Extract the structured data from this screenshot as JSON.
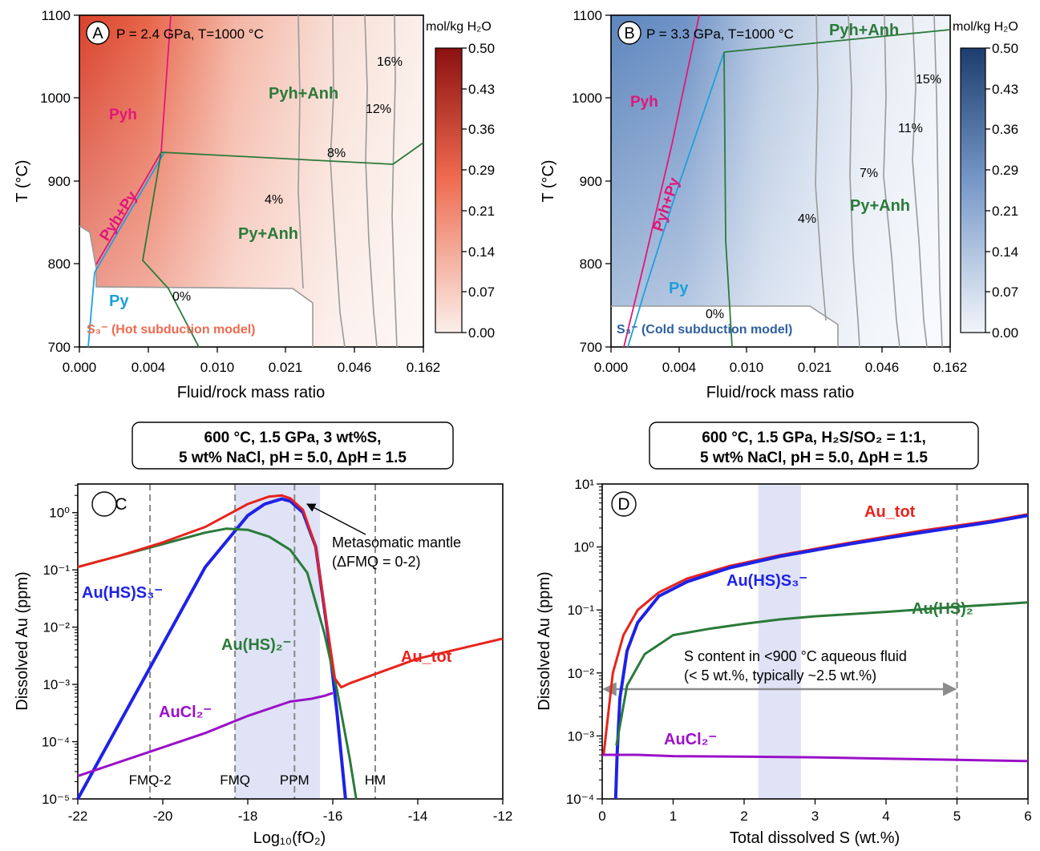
{
  "colors": {
    "red": "#e8231c",
    "blue": "#1e22e6",
    "green": "#2b7a3a",
    "purple": "#9a10c8",
    "cyan": "#1ea0dc",
    "magenta": "#e0187a",
    "gray": "#888888",
    "band": "#dfe3f5"
  },
  "chart_data": [
    {
      "panel": "A",
      "type": "heatmap",
      "conditions": "P = 2.4 GPa, T=1000 °C",
      "xlabel": "Fluid/rock mass ratio",
      "ylabel": "T (°C)",
      "xticks": [
        "0.000",
        "0.004",
        "0.010",
        "0.021",
        "0.046",
        "0.162"
      ],
      "yticks": [
        "700",
        "800",
        "900",
        "1000",
        "1100"
      ],
      "ylim": [
        700,
        1100
      ],
      "colorbar": {
        "label": "mol/kg H₂O",
        "ticks": [
          "0.00",
          "0.07",
          "0.14",
          "0.21",
          "0.29",
          "0.36",
          "0.43",
          "0.50"
        ],
        "colors": [
          "#fbefe9",
          "#e8231c",
          "#8b1010"
        ]
      },
      "isopleths": [
        "16%",
        "12%",
        "8%",
        "4%",
        "0%"
      ],
      "fields": [
        "Pyh",
        "Pyh+Py",
        "Pyh+Anh",
        "Py+Anh",
        "Py"
      ],
      "model_label": "S₃⁻ (Hot subduction model)"
    },
    {
      "panel": "B",
      "type": "heatmap",
      "conditions": "P = 3.3 GPa, T=1000 °C",
      "xlabel": "Fluid/rock mass ratio",
      "ylabel": "T (°C)",
      "xticks": [
        "0.000",
        "0.004",
        "0.010",
        "0.021",
        "0.046",
        "0.162"
      ],
      "yticks": [
        "700",
        "800",
        "900",
        "1000",
        "1100"
      ],
      "ylim": [
        700,
        1100
      ],
      "colorbar": {
        "label": "mol/kg H₂O",
        "ticks": [
          "0.00",
          "0.07",
          "0.14",
          "0.21",
          "0.29",
          "0.36",
          "0.43",
          "0.50"
        ],
        "colors": [
          "#f2f5fa",
          "#2d5fa0",
          "#1c3d6e"
        ]
      },
      "isopleths": [
        "15%",
        "11%",
        "7%",
        "4%",
        "0%"
      ],
      "fields": [
        "Pyh",
        "Pyh+Py",
        "Pyh+Anh",
        "Py+Anh",
        "Py"
      ],
      "model_label": "S₃⁻ (Cold subduction model)"
    },
    {
      "panel": "C",
      "type": "line",
      "header": [
        "600 °C, 1.5 GPa, 3 wt%S,",
        "5 wt% NaCl, pH = 5.0, ΔpH = 1.5"
      ],
      "xlabel": "Log₁₀(fO₂)",
      "ylabel": "Dissolved Au (ppm)",
      "xlim": [
        -22,
        -12
      ],
      "ylim_log": [
        -5,
        0.5
      ],
      "xticks": [
        "-22",
        "-20",
        "-18",
        "-16",
        "-14",
        "-12"
      ],
      "yticks": [
        "10⁻⁵",
        "10⁻⁴",
        "10⁻³",
        "10⁻²",
        "10⁻¹",
        "10⁰"
      ],
      "vlines": [
        {
          "x": -20.3,
          "label": "FMQ-2"
        },
        {
          "x": -18.3,
          "label": "FMQ"
        },
        {
          "x": -16.9,
          "label": "PPM"
        },
        {
          "x": -15.0,
          "label": "HM"
        }
      ],
      "band": [
        -18.3,
        -16.3
      ],
      "annotation": [
        "Metasomatic mantle",
        "(ΔFMQ = 0-2)"
      ],
      "series": [
        {
          "name": "Au(HS)S₃⁻",
          "color": "blue",
          "x": [
            -22,
            -21,
            -20,
            -19,
            -18.5,
            -18,
            -17.6,
            -17.2,
            -17,
            -16.7,
            -16.4,
            -16.1,
            -15.9,
            -15.7
          ],
          "logy": [
            -5,
            -3.65,
            -2.3,
            -0.95,
            -0.5,
            -0.05,
            0.15,
            0.24,
            0.2,
            0.0,
            -0.6,
            -2.2,
            -3.5,
            -5.0
          ]
        },
        {
          "name": "Au(HS)₂⁻",
          "color": "green",
          "x": [
            -22,
            -21,
            -20,
            -19,
            -18.5,
            -18,
            -17.5,
            -17,
            -16.6,
            -16.2,
            -15.9,
            -15.6,
            -15.45
          ],
          "logy": [
            -0.95,
            -0.75,
            -0.55,
            -0.35,
            -0.28,
            -0.3,
            -0.42,
            -0.65,
            -1.05,
            -2.1,
            -3.1,
            -4.3,
            -5.0
          ]
        },
        {
          "name": "AuCl₂⁻",
          "color": "purple",
          "x": [
            -22,
            -21,
            -20,
            -19,
            -18,
            -17,
            -16.5,
            -16.2,
            -16
          ],
          "logy": [
            -4.6,
            -4.35,
            -4.1,
            -3.85,
            -3.55,
            -3.3,
            -3.25,
            -3.2,
            -3.15
          ]
        },
        {
          "name": "Au_tot",
          "color": "red",
          "x": [
            -22,
            -21,
            -20,
            -19,
            -18.5,
            -18,
            -17.5,
            -17.2,
            -17,
            -16.7,
            -16.4,
            -16.15,
            -15.95,
            -15.8,
            -15.6,
            -14,
            -12
          ],
          "logy": [
            -0.95,
            -0.75,
            -0.52,
            -0.25,
            -0.05,
            0.15,
            0.28,
            0.3,
            0.25,
            0.05,
            -0.6,
            -1.9,
            -2.9,
            -3.05,
            -2.98,
            -2.55,
            -2.2
          ]
        }
      ]
    },
    {
      "panel": "D",
      "type": "line",
      "header": [
        "600 °C, 1.5 GPa, H₂S/SO₂ = 1:1,",
        "5 wt% NaCl, pH = 5.0, ΔpH = 1.5"
      ],
      "xlabel": "Total dissolved S (wt.%)",
      "ylabel": "Dissolved Au (ppm)",
      "xlim": [
        0,
        6
      ],
      "ylim_log": [
        -4,
        1
      ],
      "xticks": [
        "0",
        "1",
        "2",
        "3",
        "4",
        "5",
        "6"
      ],
      "yticks": [
        "10⁻⁴",
        "10⁻³",
        "10⁻²",
        "10⁻¹",
        "10⁰",
        "10¹"
      ],
      "vlines": [
        {
          "x": 5,
          "label": ""
        }
      ],
      "band": [
        2.2,
        2.8
      ],
      "annotation": [
        "S content in <900 °C aqueous fluid",
        "(< 5 wt.%, typically ~2.5 wt.%)"
      ],
      "arrow": [
        0,
        5
      ],
      "series": [
        {
          "name": "Au_tot",
          "color": "red",
          "x": [
            0.02,
            0.15,
            0.3,
            0.5,
            0.8,
            1.2,
            1.8,
            2.5,
            3.5,
            4.5,
            5.5,
            6.0
          ],
          "logy": [
            -3.3,
            -2.0,
            -1.4,
            -1.0,
            -0.72,
            -0.5,
            -0.3,
            -0.13,
            0.07,
            0.26,
            0.42,
            0.52
          ]
        },
        {
          "name": "Au(HS)S₃⁻",
          "color": "blue",
          "x": [
            0.19,
            0.21,
            0.25,
            0.35,
            0.5,
            0.8,
            1.2,
            1.8,
            2.5,
            3.5,
            4.5,
            5.5,
            6.0
          ],
          "logy": [
            -4.0,
            -3.3,
            -2.4,
            -1.65,
            -1.2,
            -0.78,
            -0.55,
            -0.33,
            -0.15,
            0.05,
            0.23,
            0.4,
            0.5
          ]
        },
        {
          "name": "Au(HS)₂⁻",
          "color": "green",
          "x": [
            0.2,
            0.35,
            0.6,
            1.0,
            1.5,
            2.0,
            2.5,
            3.0,
            4.0,
            5.0,
            6.0
          ],
          "logy": [
            -3.15,
            -2.2,
            -1.7,
            -1.4,
            -1.3,
            -1.22,
            -1.15,
            -1.1,
            -1.03,
            -0.95,
            -0.88
          ]
        },
        {
          "name": "AuCl₂⁻",
          "color": "purple",
          "x": [
            0.0,
            0.5,
            1.0,
            2.0,
            3.0,
            4.0,
            5.0,
            6.0
          ],
          "logy": [
            -3.3,
            -3.3,
            -3.32,
            -3.33,
            -3.34,
            -3.36,
            -3.38,
            -3.4
          ]
        }
      ]
    }
  ]
}
